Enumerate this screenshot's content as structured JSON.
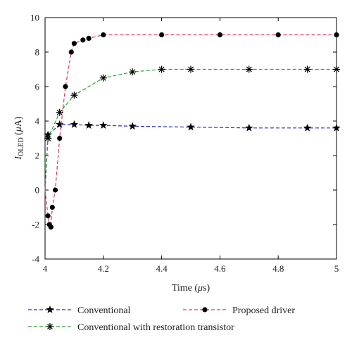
{
  "chart_data": {
    "type": "line",
    "xlabel_main": "Time (",
    "xlabel_unit_sym": "μ",
    "xlabel_unit_rest": "s)",
    "ylabel_main": "I",
    "ylabel_sub": "OLED",
    "ylabel_open": " (",
    "ylabel_unit_sym": "μ",
    "ylabel_unit_rest": "A)",
    "xlim": [
      4,
      5
    ],
    "ylim": [
      -4,
      10
    ],
    "x_ticks": [
      "4",
      "4.2",
      "4.4",
      "4.6",
      "4.8",
      "5"
    ],
    "x_tick_values": [
      4,
      4.2,
      4.4,
      4.6,
      4.8,
      5
    ],
    "y_ticks": [
      "-4",
      "-2",
      "0",
      "2",
      "4",
      "6",
      "8",
      "10"
    ],
    "y_tick_values": [
      -4,
      -2,
      0,
      2,
      4,
      6,
      8,
      10
    ],
    "grid": false,
    "legend_position": "bottom",
    "series": [
      {
        "name": "Conventional",
        "color": "#2b2bbf",
        "marker": "star",
        "x": [
          4,
          4.01,
          4.05,
          4.1,
          4.15,
          4.2,
          4.3,
          4.5,
          4.7,
          4.9,
          5
        ],
        "y": [
          0,
          3.2,
          3.8,
          3.8,
          3.75,
          3.75,
          3.7,
          3.65,
          3.6,
          3.6,
          3.6
        ]
      },
      {
        "name": "Proposed driver",
        "color": "#d93a5a",
        "marker": "dot",
        "x": [
          4,
          4.01,
          4.015,
          4.02,
          4.025,
          4.035,
          4.05,
          4.07,
          4.09,
          4.1,
          4.13,
          4.15,
          4.2,
          4.4,
          4.6,
          4.8,
          5
        ],
        "y": [
          0,
          -1.5,
          -2,
          -2.15,
          -1,
          0,
          3,
          6,
          8,
          8.5,
          8.7,
          8.8,
          9,
          9,
          9,
          9,
          9
        ]
      },
      {
        "name": "Conventional with restoration transistor",
        "color": "#2ca02c",
        "marker": "asterisk",
        "x": [
          4,
          4.01,
          4.05,
          4.1,
          4.2,
          4.3,
          4.4,
          4.5,
          4.7,
          4.9,
          5
        ],
        "y": [
          0,
          3,
          4.5,
          5.5,
          6.5,
          6.85,
          7,
          7,
          7,
          7,
          7
        ]
      }
    ]
  }
}
